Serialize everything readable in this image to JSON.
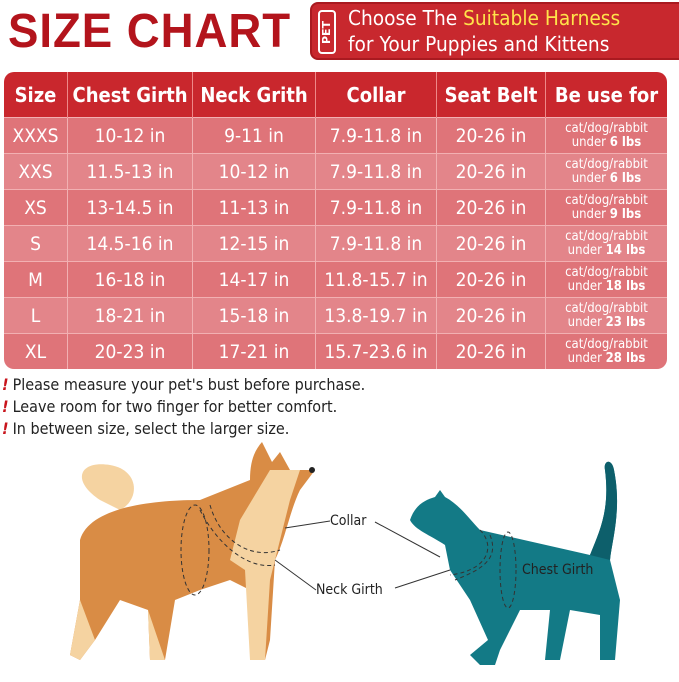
{
  "header": {
    "title": "SIZE CHART",
    "badge": "PET",
    "banner_line1_pre": "Choose The ",
    "banner_line1_highlight": "Suitable Harness",
    "banner_line2": "for Your Puppies and Kittens"
  },
  "colors": {
    "title": "#b3141c",
    "header_bg": "#c9272d",
    "row_bg": "#df7479",
    "highlight": "#ffe34a"
  },
  "table": {
    "columns": [
      "Size",
      "Chest Girth",
      "Neck Grith",
      "Collar",
      "Seat Belt",
      "Be use for"
    ],
    "rows": [
      {
        "size": "XXXS",
        "chest": "10-12 in",
        "neck": "9-11 in",
        "collar": "7.9-11.8 in",
        "belt": "20-26 in",
        "use1": "cat/dog/rabbit",
        "use2": "under ",
        "weight": "6 lbs"
      },
      {
        "size": "XXS",
        "chest": "11.5-13 in",
        "neck": "10-12 in",
        "collar": "7.9-11.8 in",
        "belt": "20-26 in",
        "use1": "cat/dog/rabbit",
        "use2": "under ",
        "weight": "6 lbs"
      },
      {
        "size": "XS",
        "chest": "13-14.5 in",
        "neck": "11-13 in",
        "collar": "7.9-11.8 in",
        "belt": "20-26 in",
        "use1": "cat/dog/rabbit",
        "use2": "under ",
        "weight": "9 lbs"
      },
      {
        "size": "S",
        "chest": "14.5-16 in",
        "neck": "12-15 in",
        "collar": "7.9-11.8 in",
        "belt": "20-26 in",
        "use1": "cat/dog/rabbit",
        "use2": "under ",
        "weight": "14 lbs"
      },
      {
        "size": "M",
        "chest": "16-18 in",
        "neck": "14-17 in",
        "collar": "11.8-15.7 in",
        "belt": "20-26 in",
        "use1": "cat/dog/rabbit",
        "use2": "under ",
        "weight": "18 lbs"
      },
      {
        "size": "L",
        "chest": "18-21 in",
        "neck": "15-18 in",
        "collar": "13.8-19.7 in",
        "belt": "20-26 in",
        "use1": "cat/dog/rabbit",
        "use2": "under ",
        "weight": "23 lbs"
      },
      {
        "size": "XL",
        "chest": "20-23 in",
        "neck": "17-21 in",
        "collar": "15.7-23.6 in",
        "belt": "20-26 in",
        "use1": "cat/dog/rabbit",
        "use2": "under ",
        "weight": "28 lbs"
      }
    ]
  },
  "notes": {
    "mark": "!",
    "items": [
      "Please measure your pet's bust before purchase.",
      "Leave room for two finger for better comfort.",
      "In between size, select the larger size."
    ]
  },
  "diagram": {
    "collar": "Collar",
    "neck_girth": "Neck Girth",
    "chest_girth": "Chest Girth"
  }
}
